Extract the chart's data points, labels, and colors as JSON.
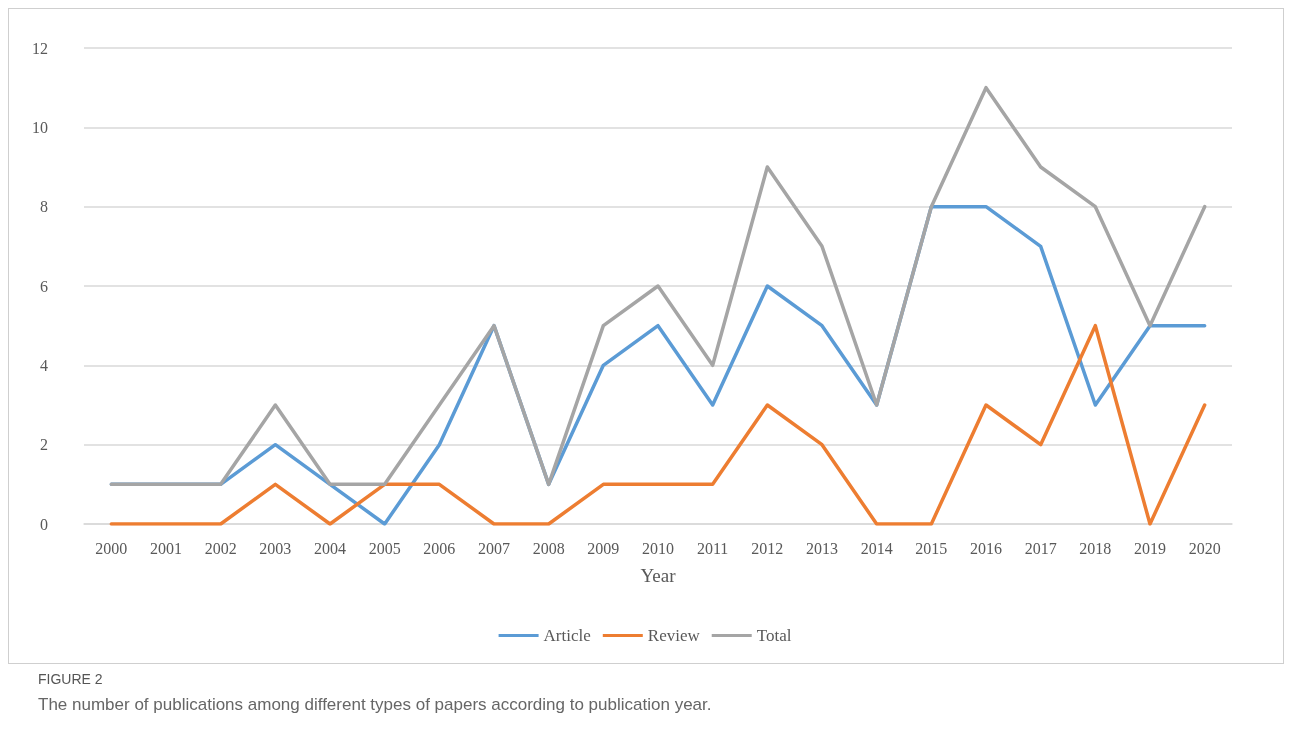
{
  "chart_data": {
    "type": "line",
    "xlabel": "Year",
    "categories": [
      "2000",
      "2001",
      "2002",
      "2003",
      "2004",
      "2005",
      "2006",
      "2007",
      "2008",
      "2009",
      "2010",
      "2011",
      "2012",
      "2013",
      "2014",
      "2015",
      "2016",
      "2017",
      "2018",
      "2019",
      "2020"
    ],
    "series": [
      {
        "name": "Article",
        "color": "#5b9bd5",
        "values": [
          1,
          1,
          1,
          2,
          1,
          0,
          2,
          5,
          1,
          4,
          5,
          3,
          6,
          5,
          3,
          8,
          8,
          7,
          3,
          5,
          5
        ]
      },
      {
        "name": "Review",
        "color": "#ed7d31",
        "values": [
          0,
          0,
          0,
          1,
          0,
          1,
          1,
          0,
          0,
          1,
          1,
          1,
          3,
          2,
          0,
          0,
          3,
          2,
          5,
          0,
          3
        ]
      },
      {
        "name": "Total",
        "color": "#a5a5a5",
        "values": [
          1,
          1,
          1,
          3,
          1,
          1,
          3,
          5,
          1,
          5,
          6,
          4,
          9,
          7,
          3,
          8,
          11,
          9,
          8,
          5,
          8
        ]
      }
    ],
    "ylim": [
      0,
      12
    ],
    "yticks": [
      0,
      2,
      4,
      6,
      8,
      10,
      12
    ],
    "grid": "y",
    "legend": "bottom",
    "marker": "none",
    "line_style": "solid",
    "annotations": [
      "FIGURE 2",
      "The number of publications among different types of papers according to publication year."
    ]
  }
}
